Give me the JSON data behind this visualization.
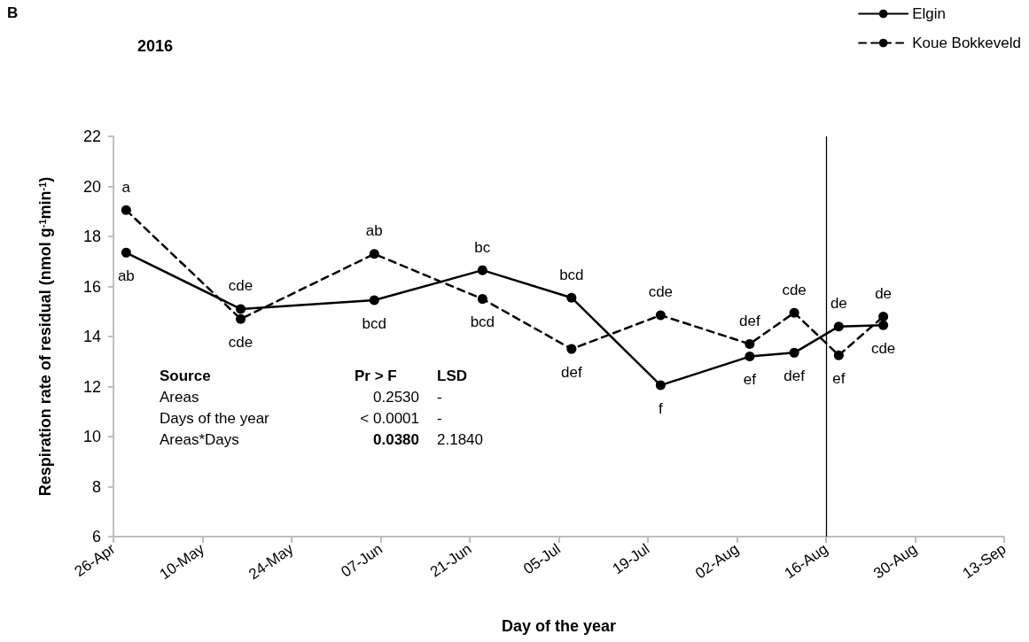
{
  "chart_data": {
    "type": "line",
    "title": "2016",
    "xlabel": "Day of the year",
    "ylabel": "Respiration rate of residual (nmol g$^{-1}$min$^{-1}$)",
    "x": [
      "--04-28",
      "--05-16",
      "--06-06",
      "--06-23",
      "--07-07",
      "--07-21",
      "--08-04",
      "--08-11",
      "--08-18",
      "--08-25"
    ],
    "series": [
      {
        "name": "Elgin",
        "color": "#000000",
        "line_style": "solid",
        "values": [
          17.35,
          15.1,
          15.45,
          16.65,
          15.55,
          12.05,
          13.2,
          13.35,
          14.4,
          14.45
        ],
        "value_labels": [
          "ab",
          "cde",
          "bcd",
          "bc",
          "bcd",
          "f",
          "ef",
          "def",
          "de",
          "cde"
        ]
      },
      {
        "name": "Koue Bokkeveld",
        "color": "#000000",
        "line_style": "dashed",
        "values": [
          19.05,
          14.7,
          17.3,
          15.5,
          13.5,
          14.85,
          13.7,
          14.95,
          13.25,
          14.8
        ],
        "value_labels": [
          "a",
          "cde",
          "ab",
          "bcd",
          "def",
          "cde",
          "def",
          "cde",
          "ef",
          "de"
        ]
      }
    ],
    "xlim": [
      "--04-26",
      "--09-13"
    ],
    "xticks": [
      {
        "value": "--04-26",
        "label": "26-Apr"
      },
      {
        "value": "--05-10",
        "label": "10-May"
      },
      {
        "value": "--05-24",
        "label": "24-May"
      },
      {
        "value": "--06-07",
        "label": "07-Jun"
      },
      {
        "value": "--06-21",
        "label": "21-Jun"
      },
      {
        "value": "--07-05",
        "label": "05-Jul"
      },
      {
        "value": "--07-19",
        "label": "19-Jul"
      },
      {
        "value": "--08-02",
        "label": "02-Aug"
      },
      {
        "value": "--08-16",
        "label": "16-Aug"
      },
      {
        "value": "--08-30",
        "label": "30-Aug"
      },
      {
        "value": "--09-13",
        "label": "13-Sep"
      }
    ],
    "ylim": [
      6,
      22
    ],
    "yticks": [
      6,
      8,
      10,
      12,
      14,
      16,
      18,
      20,
      22
    ],
    "ref_lines": [
      {
        "axis": "x",
        "value": "--08-16",
        "color": "#000000"
      }
    ],
    "marker": "circle",
    "grid": false,
    "legend": "top right",
    "annotations": [
      "B",
      "Source",
      "Pr > F",
      "LSD",
      "Areas",
      "0.2530",
      "-",
      "Days of the year",
      "< 0.0001",
      "-",
      "Areas*Days",
      "0.0380",
      "2.1840"
    ]
  }
}
